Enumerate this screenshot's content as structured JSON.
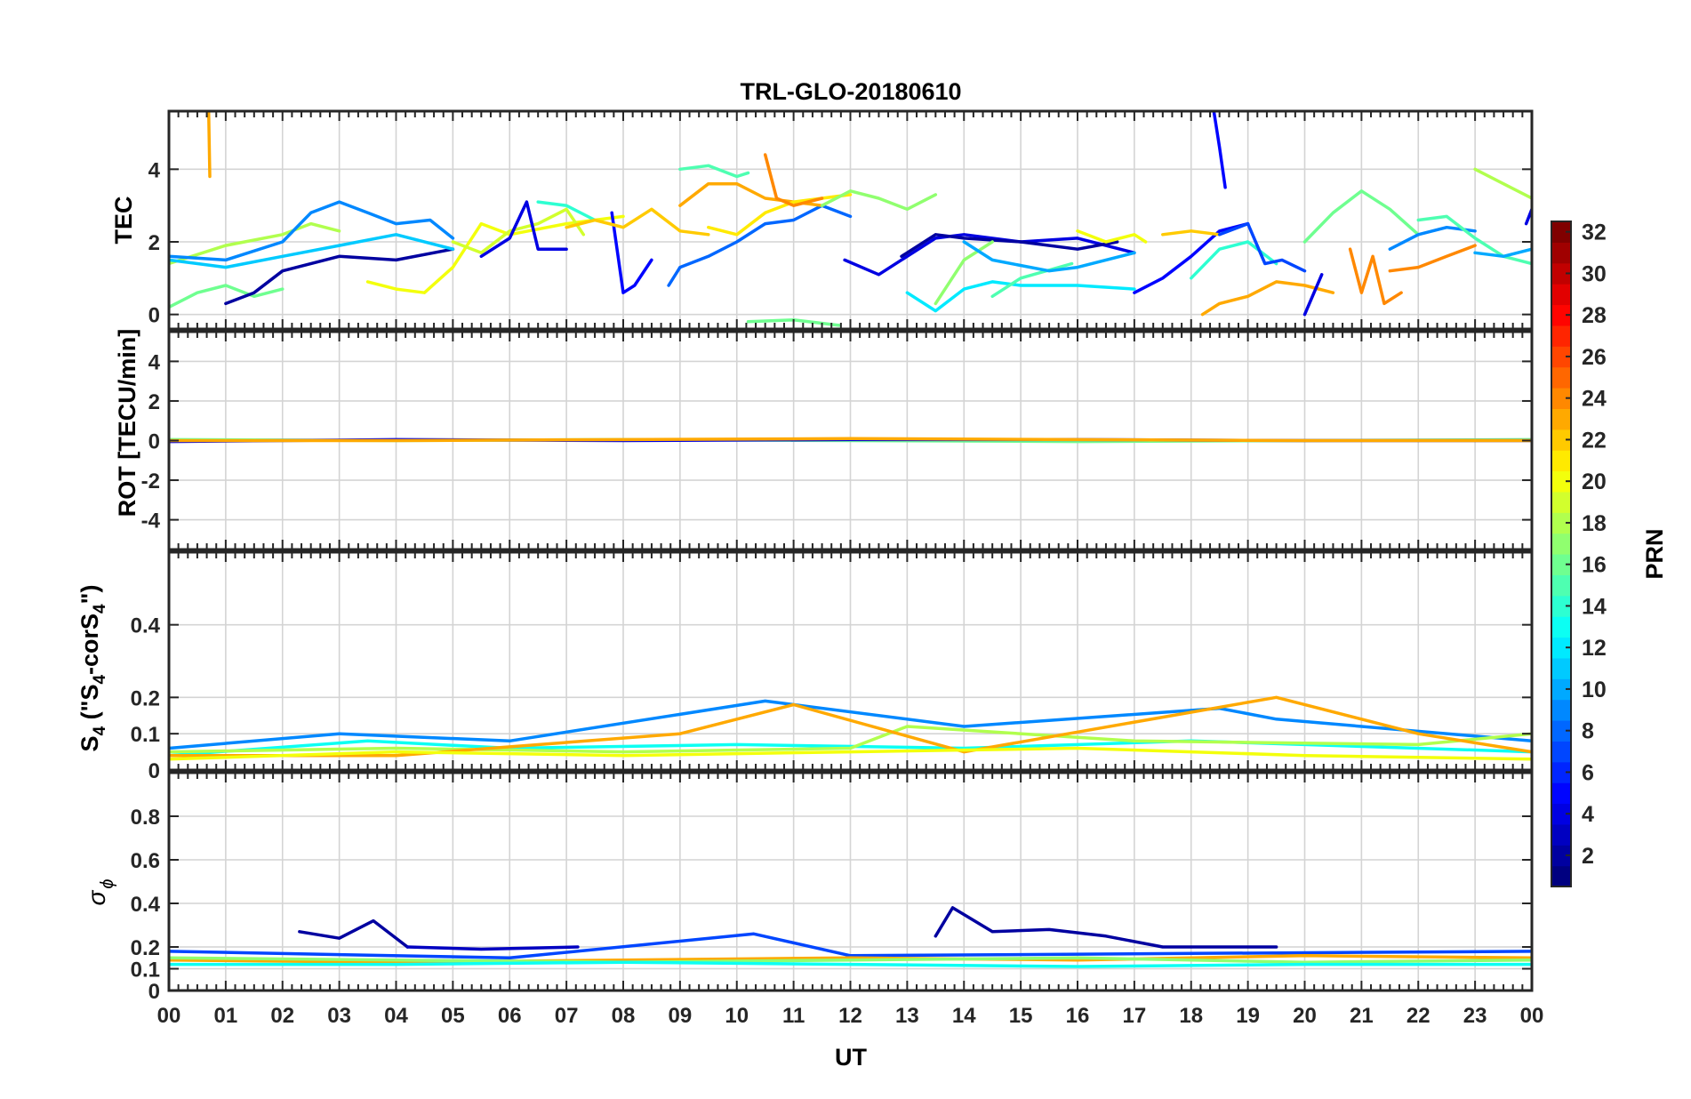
{
  "title": "TRL-GLO-20180610",
  "x_axis": {
    "label": "UT",
    "ticks": [
      "00",
      "01",
      "02",
      "03",
      "04",
      "05",
      "06",
      "07",
      "08",
      "09",
      "10",
      "11",
      "12",
      "13",
      "14",
      "15",
      "16",
      "17",
      "18",
      "19",
      "20",
      "21",
      "22",
      "23",
      "00"
    ]
  },
  "colorbar": {
    "label": "PRN",
    "ticks": [
      "2",
      "4",
      "6",
      "8",
      "10",
      "12",
      "14",
      "16",
      "18",
      "20",
      "22",
      "24",
      "26",
      "28",
      "30",
      "32"
    ],
    "range": [
      1,
      32
    ],
    "colormap": "jet"
  },
  "panels": [
    {
      "id": "tec",
      "ylabel": "TEC",
      "ylim": [
        -0.4,
        5.6
      ],
      "yticks": [
        0,
        2,
        4
      ]
    },
    {
      "id": "rot",
      "ylabel": "ROT [TECU/min]",
      "ylim": [
        -5.5,
        5.5
      ],
      "yticks": [
        -4,
        -2,
        0,
        2,
        4
      ]
    },
    {
      "id": "s4",
      "ylabel_main": "S",
      "ylabel_sub": "4",
      "ylabel_rest1": " (\"S",
      "ylabel_sub2": "4",
      "ylabel_rest2": "-corS",
      "ylabel_sub3": "4",
      "ylabel_rest3": "\")",
      "ylim": [
        0,
        0.6
      ],
      "yticks": [
        0,
        0.1,
        0.2,
        0.4
      ]
    },
    {
      "id": "sigma",
      "ylabel_main": "σ",
      "ylabel_sub": "ϕ",
      "ylim": [
        0,
        1.0
      ],
      "yticks": [
        0,
        0.1,
        0.2,
        0.4,
        0.6,
        0.8
      ]
    }
  ],
  "chart_data": [
    {
      "type": "line",
      "panel": "tec",
      "xlabel": "UT",
      "ylabel": "TEC",
      "ylim": [
        -0.4,
        5.6
      ],
      "series": [
        {
          "prn": 23,
          "x": [
            0.7,
            0.72
          ],
          "y": [
            5.6,
            3.8
          ]
        },
        {
          "prn": 16,
          "x": [
            0.0,
            0.5,
            1.0,
            1.5,
            2.0
          ],
          "y": [
            0.2,
            0.6,
            0.8,
            0.5,
            0.7
          ]
        },
        {
          "prn": 18,
          "x": [
            0.0,
            1.0,
            2.0,
            2.5,
            3.0
          ],
          "y": [
            1.4,
            1.9,
            2.2,
            2.5,
            2.3
          ]
        },
        {
          "prn": 2,
          "x": [
            1.0,
            1.5,
            2.0,
            3.0,
            4.0,
            5.0
          ],
          "y": [
            0.3,
            0.6,
            1.2,
            1.6,
            1.5,
            1.8
          ]
        },
        {
          "prn": 9,
          "x": [
            0.0,
            1.0,
            2.0,
            2.5,
            3.0,
            3.5,
            4.0,
            4.6,
            5.0
          ],
          "y": [
            1.6,
            1.5,
            2.0,
            2.8,
            3.1,
            2.8,
            2.5,
            2.6,
            2.1
          ]
        },
        {
          "prn": 11,
          "x": [
            0.0,
            1.0,
            2.0,
            3.0,
            4.0,
            5.0
          ],
          "y": [
            1.5,
            1.3,
            1.6,
            1.9,
            2.2,
            1.8
          ]
        },
        {
          "prn": 20,
          "x": [
            3.5,
            4.0,
            4.5,
            5.0,
            5.5,
            6.0,
            7.0,
            8.0
          ],
          "y": [
            0.9,
            0.7,
            0.6,
            1.3,
            2.5,
            2.2,
            2.5,
            2.7
          ]
        },
        {
          "prn": 19,
          "x": [
            5.0,
            5.5,
            6.0,
            6.5,
            7.0,
            7.3
          ],
          "y": [
            2.0,
            1.7,
            2.3,
            2.5,
            2.9,
            2.2
          ]
        },
        {
          "prn": 4,
          "x": [
            5.5,
            6.0,
            6.3,
            6.5,
            7.0
          ],
          "y": [
            1.6,
            2.1,
            3.1,
            1.8,
            1.8
          ]
        },
        {
          "prn": 14,
          "x": [
            6.5,
            7.0,
            7.5
          ],
          "y": [
            3.1,
            3.0,
            2.6
          ]
        },
        {
          "prn": 5,
          "x": [
            7.8,
            8.0,
            8.2,
            8.5
          ],
          "y": [
            2.8,
            0.6,
            0.8,
            1.5
          ]
        },
        {
          "prn": 22,
          "x": [
            7.0,
            7.5,
            8.0,
            8.5,
            9.0,
            9.5
          ],
          "y": [
            2.4,
            2.6,
            2.4,
            2.9,
            2.3,
            2.2
          ]
        },
        {
          "prn": 8,
          "x": [
            8.8,
            9.0,
            9.5,
            10.0,
            10.5,
            11.0,
            11.5,
            12.0
          ],
          "y": [
            0.8,
            1.3,
            1.6,
            2.0,
            2.5,
            2.6,
            3.0,
            2.7
          ]
        },
        {
          "prn": 15,
          "x": [
            9.0,
            9.5,
            10.0,
            10.2
          ],
          "y": [
            4.0,
            4.1,
            3.8,
            3.9
          ]
        },
        {
          "prn": 23,
          "x": [
            9.0,
            9.5,
            10.0,
            10.5,
            11.0,
            11.5
          ],
          "y": [
            3.0,
            3.6,
            3.6,
            3.2,
            3.1,
            3.0
          ]
        },
        {
          "prn": 21,
          "x": [
            9.5,
            10.0,
            10.5,
            11.0,
            12.0
          ],
          "y": [
            2.4,
            2.2,
            2.8,
            3.1,
            3.3
          ]
        },
        {
          "prn": 24,
          "x": [
            10.5,
            10.7,
            11.0,
            11.5
          ],
          "y": [
            4.4,
            3.2,
            3.0,
            3.2
          ]
        },
        {
          "prn": 16,
          "x": [
            10.2,
            11.0,
            11.8
          ],
          "y": [
            -0.2,
            -0.15,
            -0.3
          ]
        },
        {
          "prn": 17,
          "x": [
            11.5,
            12.0,
            12.5,
            13.0,
            13.5
          ],
          "y": [
            3.0,
            3.4,
            3.2,
            2.9,
            3.3
          ]
        },
        {
          "prn": 4,
          "x": [
            11.9,
            12.5,
            13.0,
            13.5,
            14.0,
            15.0,
            16.0,
            17.0
          ],
          "y": [
            1.5,
            1.1,
            1.6,
            2.1,
            2.2,
            2.0,
            2.1,
            1.7
          ]
        },
        {
          "prn": 2,
          "x": [
            12.9,
            13.5,
            14.0,
            15.0,
            16.0,
            16.7
          ],
          "y": [
            1.6,
            2.2,
            2.1,
            2.0,
            1.8,
            2.0
          ]
        },
        {
          "prn": 12,
          "x": [
            13.0,
            13.5,
            14.0,
            14.5,
            15.0,
            16.0,
            17.0
          ],
          "y": [
            0.6,
            0.1,
            0.7,
            0.9,
            0.8,
            0.8,
            0.7
          ]
        },
        {
          "prn": 17,
          "x": [
            13.5,
            14.0,
            14.5
          ],
          "y": [
            0.3,
            1.5,
            2.0
          ]
        },
        {
          "prn": 15,
          "x": [
            14.5,
            15.0,
            15.9
          ],
          "y": [
            0.5,
            1.0,
            1.4
          ]
        },
        {
          "prn": 10,
          "x": [
            14.0,
            14.5,
            15.5,
            16.0,
            17.0
          ],
          "y": [
            2.0,
            1.5,
            1.2,
            1.3,
            1.7
          ]
        },
        {
          "prn": 20,
          "x": [
            16.0,
            16.5,
            17.0,
            17.2
          ],
          "y": [
            2.3,
            2.0,
            2.2,
            2.0
          ]
        },
        {
          "prn": 5,
          "x": [
            17.0,
            17.5,
            18.0,
            18.5,
            19.0
          ],
          "y": [
            0.6,
            1.0,
            1.6,
            2.3,
            2.5
          ]
        },
        {
          "prn": 22,
          "x": [
            17.5,
            18.0,
            18.5
          ],
          "y": [
            2.2,
            2.3,
            2.2
          ]
        },
        {
          "prn": 5,
          "x": [
            18.4,
            18.5,
            18.6
          ],
          "y": [
            5.6,
            4.6,
            3.5
          ]
        },
        {
          "prn": 14,
          "x": [
            18.0,
            18.5,
            19.0,
            19.5
          ],
          "y": [
            1.0,
            1.8,
            2.0,
            1.4
          ]
        },
        {
          "prn": 23,
          "x": [
            18.2,
            18.5,
            19.0,
            19.5,
            20.0,
            20.5
          ],
          "y": [
            0.0,
            0.3,
            0.5,
            0.9,
            0.8,
            0.6
          ]
        },
        {
          "prn": 7,
          "x": [
            18.5,
            19.0,
            19.3,
            19.6,
            20.0
          ],
          "y": [
            2.2,
            2.5,
            1.4,
            1.5,
            1.2
          ]
        },
        {
          "prn": 4,
          "x": [
            20.0,
            20.3
          ],
          "y": [
            0.0,
            1.1
          ]
        },
        {
          "prn": 16,
          "x": [
            20.0,
            20.5,
            21.0,
            21.5,
            22.0
          ],
          "y": [
            2.0,
            2.8,
            3.4,
            2.9,
            2.2
          ]
        },
        {
          "prn": 24,
          "x": [
            20.8,
            21.0,
            21.2,
            21.4,
            21.7
          ],
          "y": [
            1.8,
            0.6,
            1.6,
            0.3,
            0.6
          ]
        },
        {
          "prn": 9,
          "x": [
            21.5,
            22.0,
            22.5,
            23.0
          ],
          "y": [
            1.8,
            2.2,
            2.4,
            2.3
          ]
        },
        {
          "prn": 24,
          "x": [
            21.5,
            22.0,
            22.5,
            23.0
          ],
          "y": [
            1.2,
            1.3,
            1.6,
            1.9
          ]
        },
        {
          "prn": 15,
          "x": [
            22.0,
            22.5,
            23.0,
            23.5,
            24.0
          ],
          "y": [
            2.6,
            2.7,
            2.1,
            1.6,
            1.4
          ]
        },
        {
          "prn": 18,
          "x": [
            23.0,
            23.5,
            24.0
          ],
          "y": [
            4.0,
            3.6,
            3.2
          ]
        },
        {
          "prn": 10,
          "x": [
            23.0,
            23.5,
            24.0
          ],
          "y": [
            1.7,
            1.6,
            1.8
          ]
        },
        {
          "prn": 4,
          "x": [
            23.9,
            24.0
          ],
          "y": [
            2.5,
            2.9
          ]
        }
      ]
    },
    {
      "type": "line",
      "panel": "rot",
      "ylabel": "ROT [TECU/min]",
      "ylim": [
        -5.5,
        5.5
      ],
      "series": [
        {
          "prn": 16,
          "x": [
            0,
            4,
            8,
            12,
            16,
            20,
            24
          ],
          "y": [
            0.05,
            0.0,
            0.05,
            0.0,
            -0.05,
            0.0,
            0.05
          ]
        },
        {
          "prn": 4,
          "x": [
            0,
            4,
            8,
            12,
            16,
            20,
            24
          ],
          "y": [
            -0.05,
            0.05,
            0.0,
            0.05,
            0.05,
            0.0,
            0.0
          ]
        },
        {
          "prn": 23,
          "x": [
            0,
            4,
            8,
            12,
            16,
            20,
            24
          ],
          "y": [
            0.0,
            0.0,
            0.05,
            0.1,
            0.05,
            0.0,
            0.0
          ]
        }
      ]
    },
    {
      "type": "line",
      "panel": "s4",
      "ylabel": "S4 (\"S4-corS4\")",
      "ylim": [
        0,
        0.6
      ],
      "series": [
        {
          "prn": 9,
          "x": [
            0,
            3,
            6,
            10.5,
            14,
            18.5,
            19.5,
            24
          ],
          "y": [
            0.06,
            0.1,
            0.08,
            0.19,
            0.12,
            0.17,
            0.14,
            0.08
          ]
        },
        {
          "prn": 13,
          "x": [
            0,
            3.5,
            6,
            10,
            14,
            18,
            24
          ],
          "y": [
            0.04,
            0.08,
            0.06,
            0.07,
            0.06,
            0.08,
            0.05
          ]
        },
        {
          "prn": 18,
          "x": [
            0,
            4,
            8,
            12,
            13,
            17,
            22,
            24
          ],
          "y": [
            0.05,
            0.06,
            0.05,
            0.06,
            0.12,
            0.08,
            0.07,
            0.1
          ]
        },
        {
          "prn": 23,
          "x": [
            0,
            4,
            9,
            11,
            14,
            19.5,
            22,
            24
          ],
          "y": [
            0.04,
            0.04,
            0.1,
            0.18,
            0.05,
            0.2,
            0.1,
            0.05
          ]
        },
        {
          "prn": 20,
          "x": [
            0,
            4,
            8,
            12,
            16,
            20,
            24
          ],
          "y": [
            0.03,
            0.05,
            0.04,
            0.05,
            0.06,
            0.04,
            0.03
          ]
        }
      ]
    },
    {
      "type": "line",
      "panel": "sigma",
      "ylabel": "σ_ϕ",
      "ylim": [
        0,
        1.0
      ],
      "series": [
        {
          "prn": 2,
          "x": [
            2.3,
            3.0,
            3.6,
            4.2
          ],
          "y": [
            0.27,
            0.24,
            0.32,
            0.2
          ]
        },
        {
          "prn": 3,
          "x": [
            4.2,
            5.5,
            7.2
          ],
          "y": [
            0.2,
            0.19,
            0.2
          ]
        },
        {
          "prn": 2,
          "x": [
            13.5,
            13.8,
            14.5,
            15.5,
            16.5,
            17.5,
            19.5
          ],
          "y": [
            0.25,
            0.38,
            0.27,
            0.28,
            0.25,
            0.2,
            0.2
          ]
        },
        {
          "prn": 7,
          "x": [
            0,
            6,
            10.3,
            12,
            18,
            24
          ],
          "y": [
            0.18,
            0.15,
            0.26,
            0.16,
            0.17,
            0.18
          ]
        },
        {
          "prn": 23,
          "x": [
            0,
            4,
            8,
            12,
            16,
            20,
            24
          ],
          "y": [
            0.14,
            0.13,
            0.14,
            0.15,
            0.14,
            0.16,
            0.15
          ]
        },
        {
          "prn": 17,
          "x": [
            0,
            4,
            8,
            12,
            16,
            20,
            24
          ],
          "y": [
            0.15,
            0.14,
            0.13,
            0.14,
            0.15,
            0.13,
            0.14
          ]
        },
        {
          "prn": 13,
          "x": [
            0,
            4,
            8,
            12,
            16,
            20,
            24
          ],
          "y": [
            0.12,
            0.12,
            0.13,
            0.12,
            0.11,
            0.12,
            0.12
          ]
        }
      ]
    }
  ]
}
